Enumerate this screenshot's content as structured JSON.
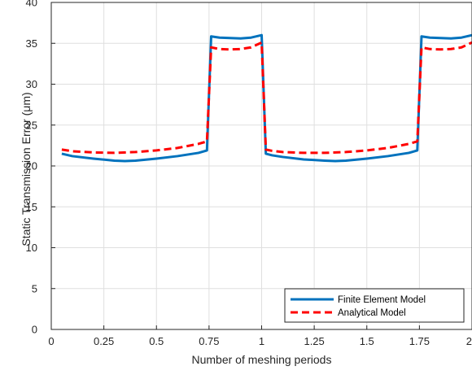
{
  "chart_data": {
    "type": "line",
    "xlabel": "Number of meshing periods",
    "ylabel": "Static Transmission Error (μm)",
    "xlim": [
      0,
      2
    ],
    "ylim": [
      0,
      40
    ],
    "xticks": [
      0,
      0.25,
      0.5,
      0.75,
      1,
      1.25,
      1.5,
      1.75,
      2
    ],
    "xtick_labels": [
      "0",
      "0.25",
      "0.5",
      "0.75",
      "1",
      "1.25",
      "1.5",
      "1.75",
      "2"
    ],
    "yticks": [
      0,
      5,
      10,
      15,
      20,
      25,
      30,
      35,
      40
    ],
    "ytick_labels": [
      "0",
      "5",
      "10",
      "15",
      "20",
      "25",
      "30",
      "35",
      "40"
    ],
    "grid": true,
    "legend_position": "bottom-right",
    "series": [
      {
        "name": "Finite Element Model",
        "color": "#0072BD",
        "style": "solid",
        "x": [
          0.05,
          0.1,
          0.2,
          0.3,
          0.35,
          0.4,
          0.5,
          0.6,
          0.7,
          0.74,
          0.76,
          0.8,
          0.85,
          0.9,
          0.95,
          1.0,
          1.02,
          1.05,
          1.1,
          1.2,
          1.3,
          1.35,
          1.4,
          1.5,
          1.6,
          1.7,
          1.74,
          1.76,
          1.8,
          1.85,
          1.9,
          1.95,
          2.0
        ],
        "y": [
          21.5,
          21.2,
          20.9,
          20.65,
          20.6,
          20.65,
          20.9,
          21.2,
          21.6,
          21.9,
          35.85,
          35.7,
          35.65,
          35.6,
          35.7,
          36.0,
          21.5,
          21.3,
          21.1,
          20.8,
          20.65,
          20.6,
          20.65,
          20.9,
          21.2,
          21.6,
          21.9,
          35.85,
          35.7,
          35.65,
          35.6,
          35.7,
          36.0
        ]
      },
      {
        "name": "Analytical Model",
        "color": "#FF0000",
        "style": "dashed",
        "x": [
          0.05,
          0.1,
          0.2,
          0.3,
          0.4,
          0.5,
          0.6,
          0.7,
          0.74,
          0.76,
          0.8,
          0.85,
          0.9,
          0.95,
          1.0,
          1.02,
          1.05,
          1.1,
          1.2,
          1.3,
          1.4,
          1.5,
          1.6,
          1.7,
          1.74,
          1.76,
          1.8,
          1.85,
          1.9,
          1.95,
          2.0
        ],
        "y": [
          22.0,
          21.8,
          21.65,
          21.6,
          21.7,
          21.9,
          22.2,
          22.7,
          23.0,
          34.5,
          34.3,
          34.25,
          34.3,
          34.5,
          35.1,
          22.0,
          21.85,
          21.7,
          21.6,
          21.6,
          21.7,
          21.9,
          22.2,
          22.7,
          23.0,
          34.5,
          34.3,
          34.25,
          34.3,
          34.5,
          35.1
        ]
      }
    ]
  }
}
